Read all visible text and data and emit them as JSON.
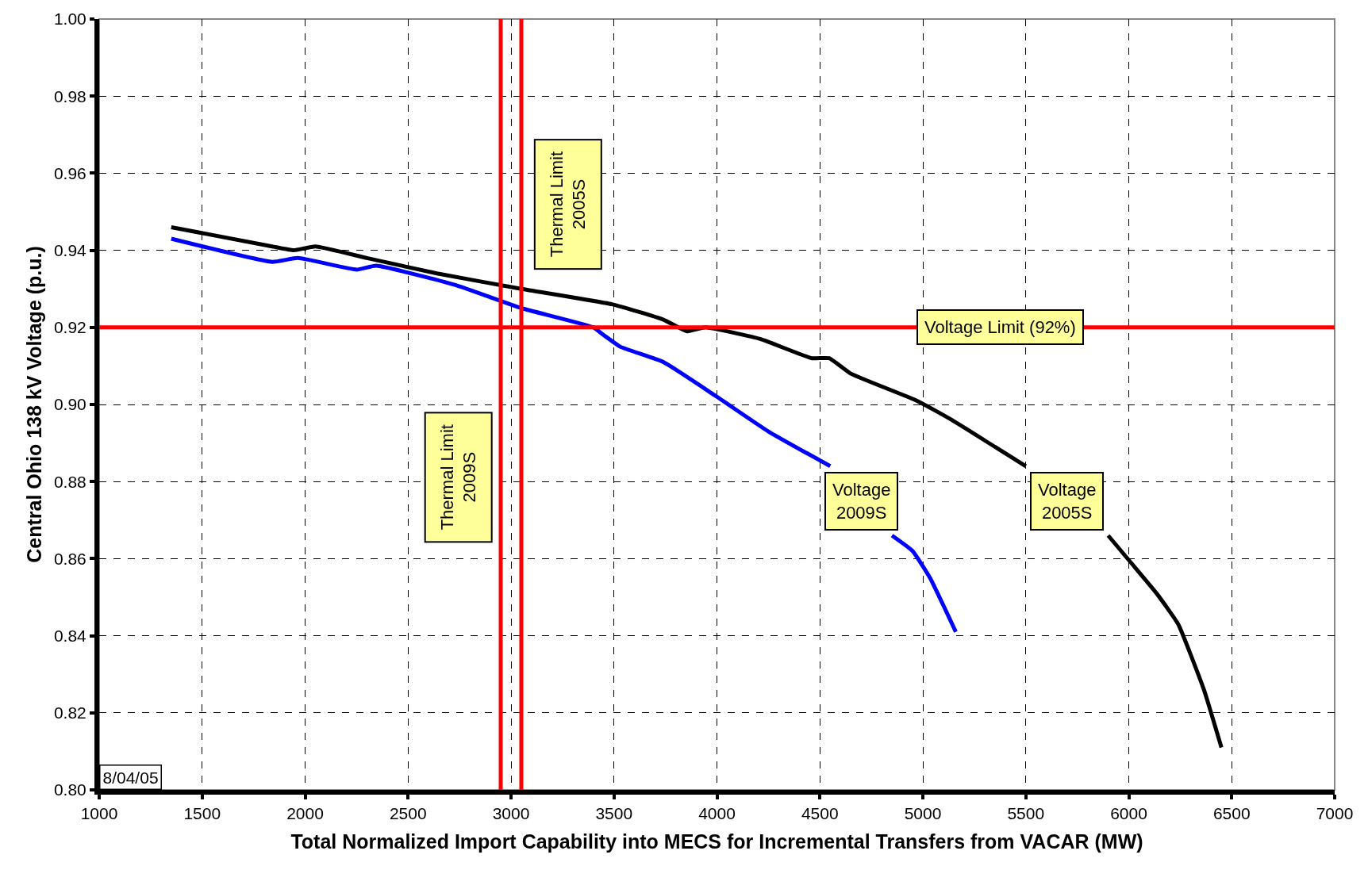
{
  "chart_data": {
    "type": "line",
    "xlabel": "Total Normalized Import Capability into MECS for Incremental Transfers from VACAR (MW)",
    "ylabel": "Central Ohio 138 kV Voltage (p.u.)",
    "series": [
      {
        "name": "Voltage 2009S",
        "color": "#0000ff",
        "x": [
          1350,
          1840,
          1965,
          2250,
          2345,
          2730,
          3050,
          3400,
          3450,
          3530,
          3740,
          4000,
          4250,
          4550,
          null,
          4850,
          4950,
          5035,
          5160
        ],
        "values": [
          0.943,
          0.937,
          0.938,
          0.935,
          0.936,
          0.931,
          0.925,
          0.92,
          0.918,
          0.915,
          0.911,
          0.902,
          0.893,
          0.884,
          null,
          0.866,
          0.862,
          0.855,
          0.841
        ]
      },
      {
        "name": "Voltage 2005S",
        "color": "#000000",
        "x": [
          1350,
          1840,
          1945,
          2050,
          2300,
          2640,
          3050,
          3490,
          3740,
          3855,
          3945,
          4210,
          4460,
          4545,
          4650,
          4970,
          5140,
          5350,
          5500,
          null,
          5900,
          6010,
          6135,
          6240,
          6365,
          6450
        ],
        "values": [
          0.946,
          0.941,
          0.94,
          0.941,
          0.938,
          0.934,
          0.93,
          0.926,
          0.922,
          0.919,
          0.92,
          0.917,
          0.912,
          0.912,
          0.908,
          0.901,
          0.896,
          0.889,
          0.884,
          null,
          0.866,
          0.859,
          0.851,
          0.843,
          0.826,
          0.811
        ]
      }
    ],
    "xlim": [
      1000,
      7000
    ],
    "xticks": [
      1000,
      1500,
      2000,
      2500,
      3000,
      3500,
      4000,
      4500,
      5000,
      5500,
      6000,
      6500,
      7000
    ],
    "ylim": [
      0.8,
      1.0
    ],
    "yticks": [
      {
        "value": 0.8,
        "label": "0.80"
      },
      {
        "value": 0.82,
        "label": "0.82"
      },
      {
        "value": 0.84,
        "label": "0.84"
      },
      {
        "value": 0.86,
        "label": "0.86"
      },
      {
        "value": 0.88,
        "label": "0.88"
      },
      {
        "value": 0.9,
        "label": "0.90"
      },
      {
        "value": 0.92,
        "label": "0.92"
      },
      {
        "value": 0.94,
        "label": "0.94"
      },
      {
        "value": 0.96,
        "label": "0.96"
      },
      {
        "value": 0.98,
        "label": "0.98"
      },
      {
        "value": 1.0,
        "label": "1.00"
      }
    ],
    "ref_lines": [
      {
        "axis": "x",
        "value": 2950,
        "label": "Thermal Limit 2009S",
        "color": "#ff0000"
      },
      {
        "axis": "x",
        "value": 3050,
        "label": "Thermal Limit 2005S",
        "color": "#ff0000"
      },
      {
        "axis": "y",
        "value": 0.92,
        "label": "Voltage Limit (92%)",
        "color": "#ff0000"
      }
    ],
    "annotations": [
      "8/04/05"
    ],
    "grid": true,
    "legend": false,
    "marker": "none",
    "line_style": "solid"
  }
}
